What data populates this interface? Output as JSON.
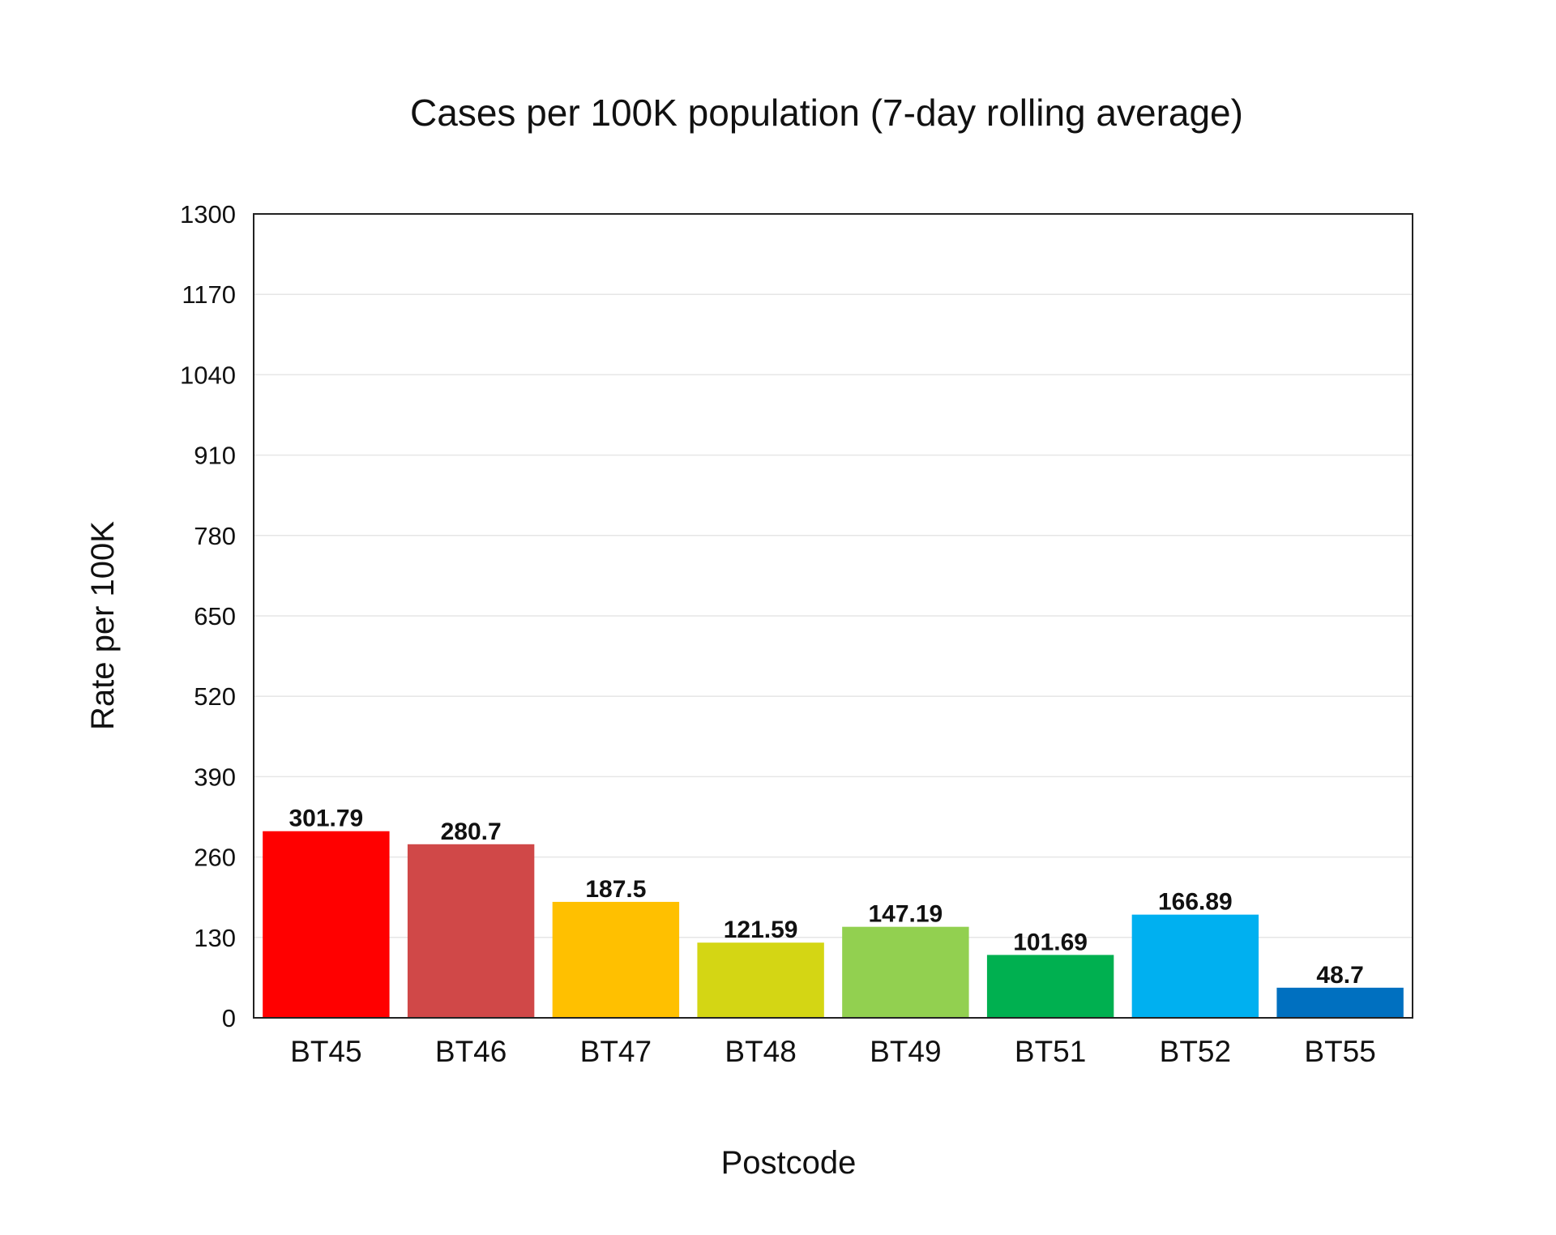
{
  "chart_data": {
    "type": "bar",
    "title": "Cases per 100K population (7-day rolling average)",
    "xlabel": "Postcode",
    "ylabel": "Rate per 100K",
    "ylim": [
      0,
      1300
    ],
    "yticks": [
      "0",
      "130",
      "260",
      "390",
      "520",
      "650",
      "780",
      "910",
      "1040",
      "1170",
      "1300"
    ],
    "categories": [
      "BT45",
      "BT46",
      "BT47",
      "BT48",
      "BT49",
      "BT51",
      "BT52",
      "BT55"
    ],
    "values": [
      301.79,
      280.7,
      187.5,
      121.59,
      147.19,
      101.69,
      166.89,
      48.7
    ],
    "data_labels": [
      "301.79",
      "280.7",
      "187.5",
      "121.59",
      "147.19",
      "101.69",
      "166.89",
      "48.7"
    ],
    "colors": [
      "#ff0000",
      "#d04848",
      "#ffc000",
      "#d4d614",
      "#92d050",
      "#00b050",
      "#00b0f0",
      "#0070c0"
    ],
    "grid": true,
    "legend": "none"
  }
}
